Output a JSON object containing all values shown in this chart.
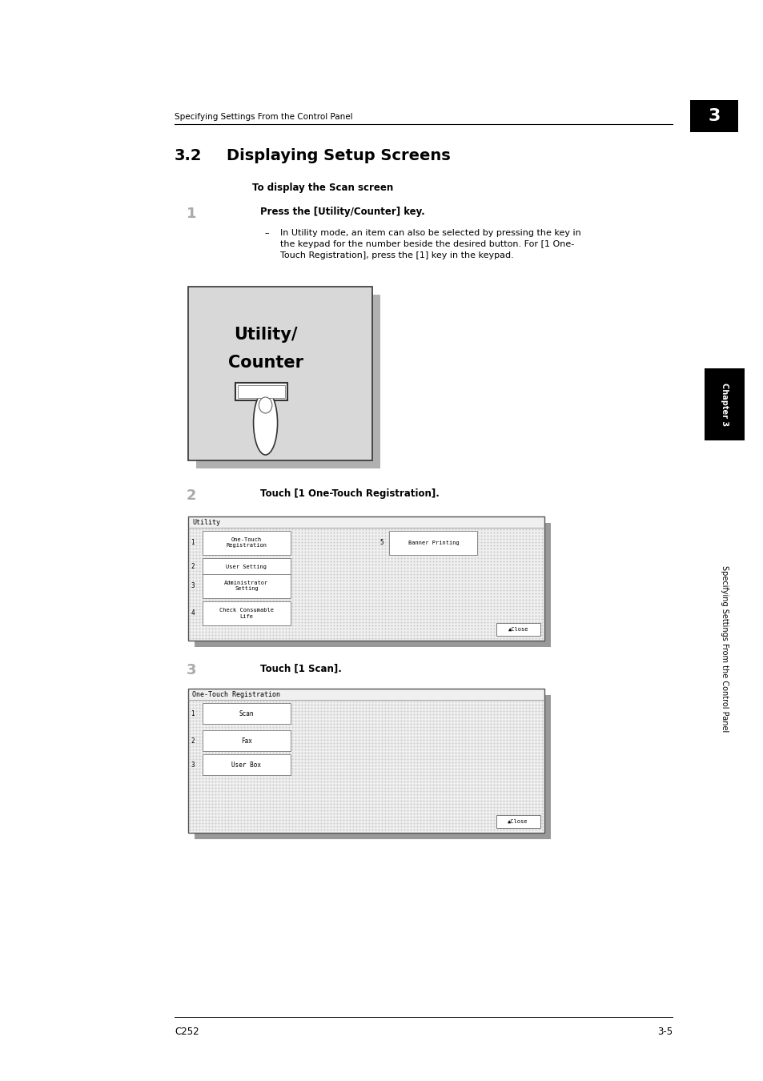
{
  "page_width": 9.54,
  "page_height": 13.5,
  "bg_color": "#ffffff",
  "header_text": "Specifying Settings From the Control Panel",
  "chapter_num": "3",
  "section_num": "3.2",
  "section_title": "Displaying Setup Screens",
  "subsection_title": "To display the Scan screen",
  "step1_num": "1",
  "step1_text": "Press the [Utility/Counter] key.",
  "step1_sub_dash": "–",
  "step1_sub": "In Utility mode, an item can also be selected by pressing the key in\nthe keypad for the number beside the desired button. For [1 One-\nTouch Registration], press the [1] key in the keypad.",
  "step2_num": "2",
  "step2_text": "Touch [1 One-Touch Registration].",
  "step3_num": "3",
  "step3_text": "Touch [1 Scan].",
  "footer_left": "C252",
  "footer_right": "3-5",
  "sidebar_text": "Specifying Settings From the Control Panel",
  "sidebar_chapter": "Chapter 3"
}
